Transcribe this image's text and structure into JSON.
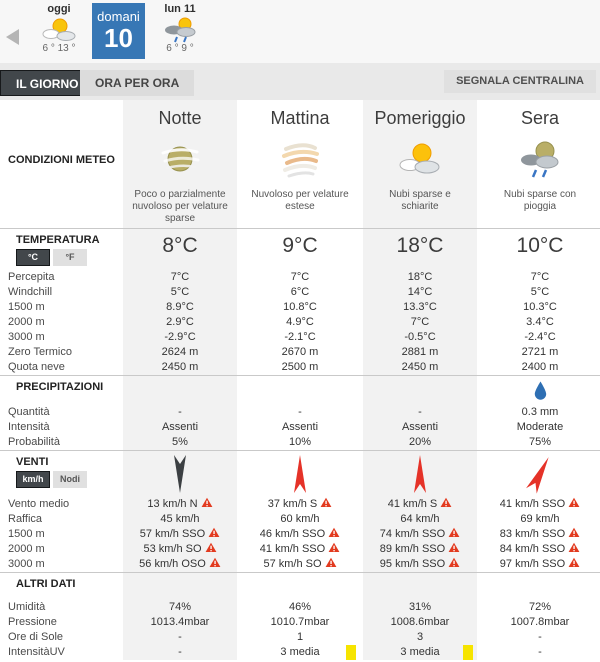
{
  "colors": {
    "accent_blue": "#3777b5",
    "tab_dark": "#42474b",
    "alert_red": "#e23a1f",
    "wind_red": "#e53228",
    "uv_yellow": "#f6e400",
    "stripe_gray": "#f2f2f2"
  },
  "day_nav": {
    "days": [
      {
        "label": "oggi",
        "icon": "sun-clouds-icon",
        "temps": "6 ° 13 °",
        "selected": false
      },
      {
        "label": "domani",
        "date": "10",
        "selected": true
      },
      {
        "label": "lun 11",
        "icon": "rain-sun-icon",
        "temps": "6 ° 9 °",
        "selected": false
      }
    ]
  },
  "tabs": [
    {
      "label": "IL GIORNO",
      "active": true
    },
    {
      "label": "ORA PER ORA",
      "active": false
    }
  ],
  "report_button": "SEGNALA CENTRALINA",
  "columns": [
    "Notte",
    "Mattina",
    "Pomeriggio",
    "Sera"
  ],
  "conditions": {
    "label": "CONDIZIONI METEO",
    "cells": [
      {
        "icon": "moon-veils-icon",
        "desc": "Poco o parzialmente nuvoloso per velature sparse"
      },
      {
        "icon": "veils-icon",
        "desc": "Nuvoloso per velature estese"
      },
      {
        "icon": "sun-clouds-icon",
        "desc": "Nubi sparse e schiarite"
      },
      {
        "icon": "moon-rain-icon",
        "desc": "Nubi sparse con pioggia"
      }
    ]
  },
  "sections": [
    {
      "id": "temperatura",
      "title": "TEMPERATURA",
      "toggle": {
        "options": [
          "°C",
          "°F"
        ],
        "selected": 0
      },
      "big_values": [
        "8°C",
        "9°C",
        "18°C",
        "10°C"
      ],
      "rows": [
        {
          "label": "Percepita",
          "values": [
            "7°C",
            "7°C",
            "18°C",
            "7°C"
          ]
        },
        {
          "label": "Windchill",
          "values": [
            "5°C",
            "6°C",
            "14°C",
            "5°C"
          ]
        },
        {
          "label": "1500 m",
          "values": [
            "8.9°C",
            "10.8°C",
            "13.3°C",
            "10.3°C"
          ]
        },
        {
          "label": "2000 m",
          "values": [
            "2.9°C",
            "4.9°C",
            "7°C",
            "3.4°C"
          ]
        },
        {
          "label": "3000 m",
          "values": [
            "-2.9°C",
            "-2.1°C",
            "-0.5°C",
            "-2.4°C"
          ]
        },
        {
          "label": "Zero Termico",
          "values": [
            "2624 m",
            "2670 m",
            "2881 m",
            "2721 m"
          ]
        },
        {
          "label": "Quota neve",
          "values": [
            "2450 m",
            "2500 m",
            "2450 m",
            "2400 m"
          ]
        }
      ]
    },
    {
      "id": "precipitazioni",
      "title": "PRECIPITAZIONI",
      "head_icons": [
        null,
        null,
        null,
        "drop-icon"
      ],
      "rows": [
        {
          "label": "Quantità",
          "values": [
            "-",
            "-",
            "-",
            "0.3 mm"
          ]
        },
        {
          "label": "Intensità",
          "values": [
            "Assenti",
            "Assenti",
            "Assenti",
            "Moderate"
          ]
        },
        {
          "label": "Probabilità",
          "values": [
            "5%",
            "10%",
            "20%",
            "75%"
          ]
        }
      ]
    },
    {
      "id": "venti",
      "title": "VENTI",
      "toggle": {
        "options": [
          "km/h",
          "Nodi"
        ],
        "selected": 0
      },
      "arrows": [
        {
          "from": "N",
          "style": "dark-down"
        },
        {
          "from": "S",
          "style": "red-up"
        },
        {
          "from": "S",
          "style": "red-up"
        },
        {
          "from": "SSO",
          "style": "red-up-right"
        }
      ],
      "rows": [
        {
          "label": "Vento medio",
          "values": [
            "13 km/h  N",
            "37 km/h  S",
            "41 km/h  S",
            "41 km/h  SSO"
          ],
          "warn": [
            true,
            true,
            true,
            true
          ]
        },
        {
          "label": "Raffica",
          "values": [
            "45 km/h",
            "60 km/h",
            "64 km/h",
            "69 km/h"
          ],
          "warn": [
            false,
            false,
            false,
            false
          ]
        },
        {
          "label": "1500 m",
          "values": [
            "57 km/h SSO",
            "46 km/h SSO",
            "74 km/h SSO",
            "83 km/h SSO"
          ],
          "warn": [
            true,
            true,
            true,
            true
          ]
        },
        {
          "label": "2000 m",
          "values": [
            "53 km/h SO",
            "41 km/h SSO",
            "89 km/h SSO",
            "84 km/h SSO"
          ],
          "warn": [
            true,
            true,
            true,
            true
          ]
        },
        {
          "label": "3000 m",
          "values": [
            "56 km/h OSO",
            "57 km/h SO",
            "95 km/h SSO",
            "97 km/h SSO"
          ],
          "warn": [
            true,
            true,
            true,
            true
          ]
        }
      ]
    },
    {
      "id": "altri-dati",
      "title": "ALTRI DATI",
      "rows": [
        {
          "label": "Umidità",
          "values": [
            "74%",
            "46%",
            "31%",
            "72%"
          ]
        },
        {
          "label": "Pressione",
          "values": [
            "1013.4mbar",
            "1010.7mbar",
            "1008.6mbar",
            "1007.8mbar"
          ]
        },
        {
          "label": "Ore di Sole",
          "values": [
            "-",
            "1",
            "3",
            "-"
          ]
        },
        {
          "label": "IntensitàUV",
          "values": [
            "-",
            "3 media",
            "3 media",
            "-"
          ],
          "uv_markers": [
            false,
            true,
            true,
            false
          ]
        }
      ]
    }
  ]
}
